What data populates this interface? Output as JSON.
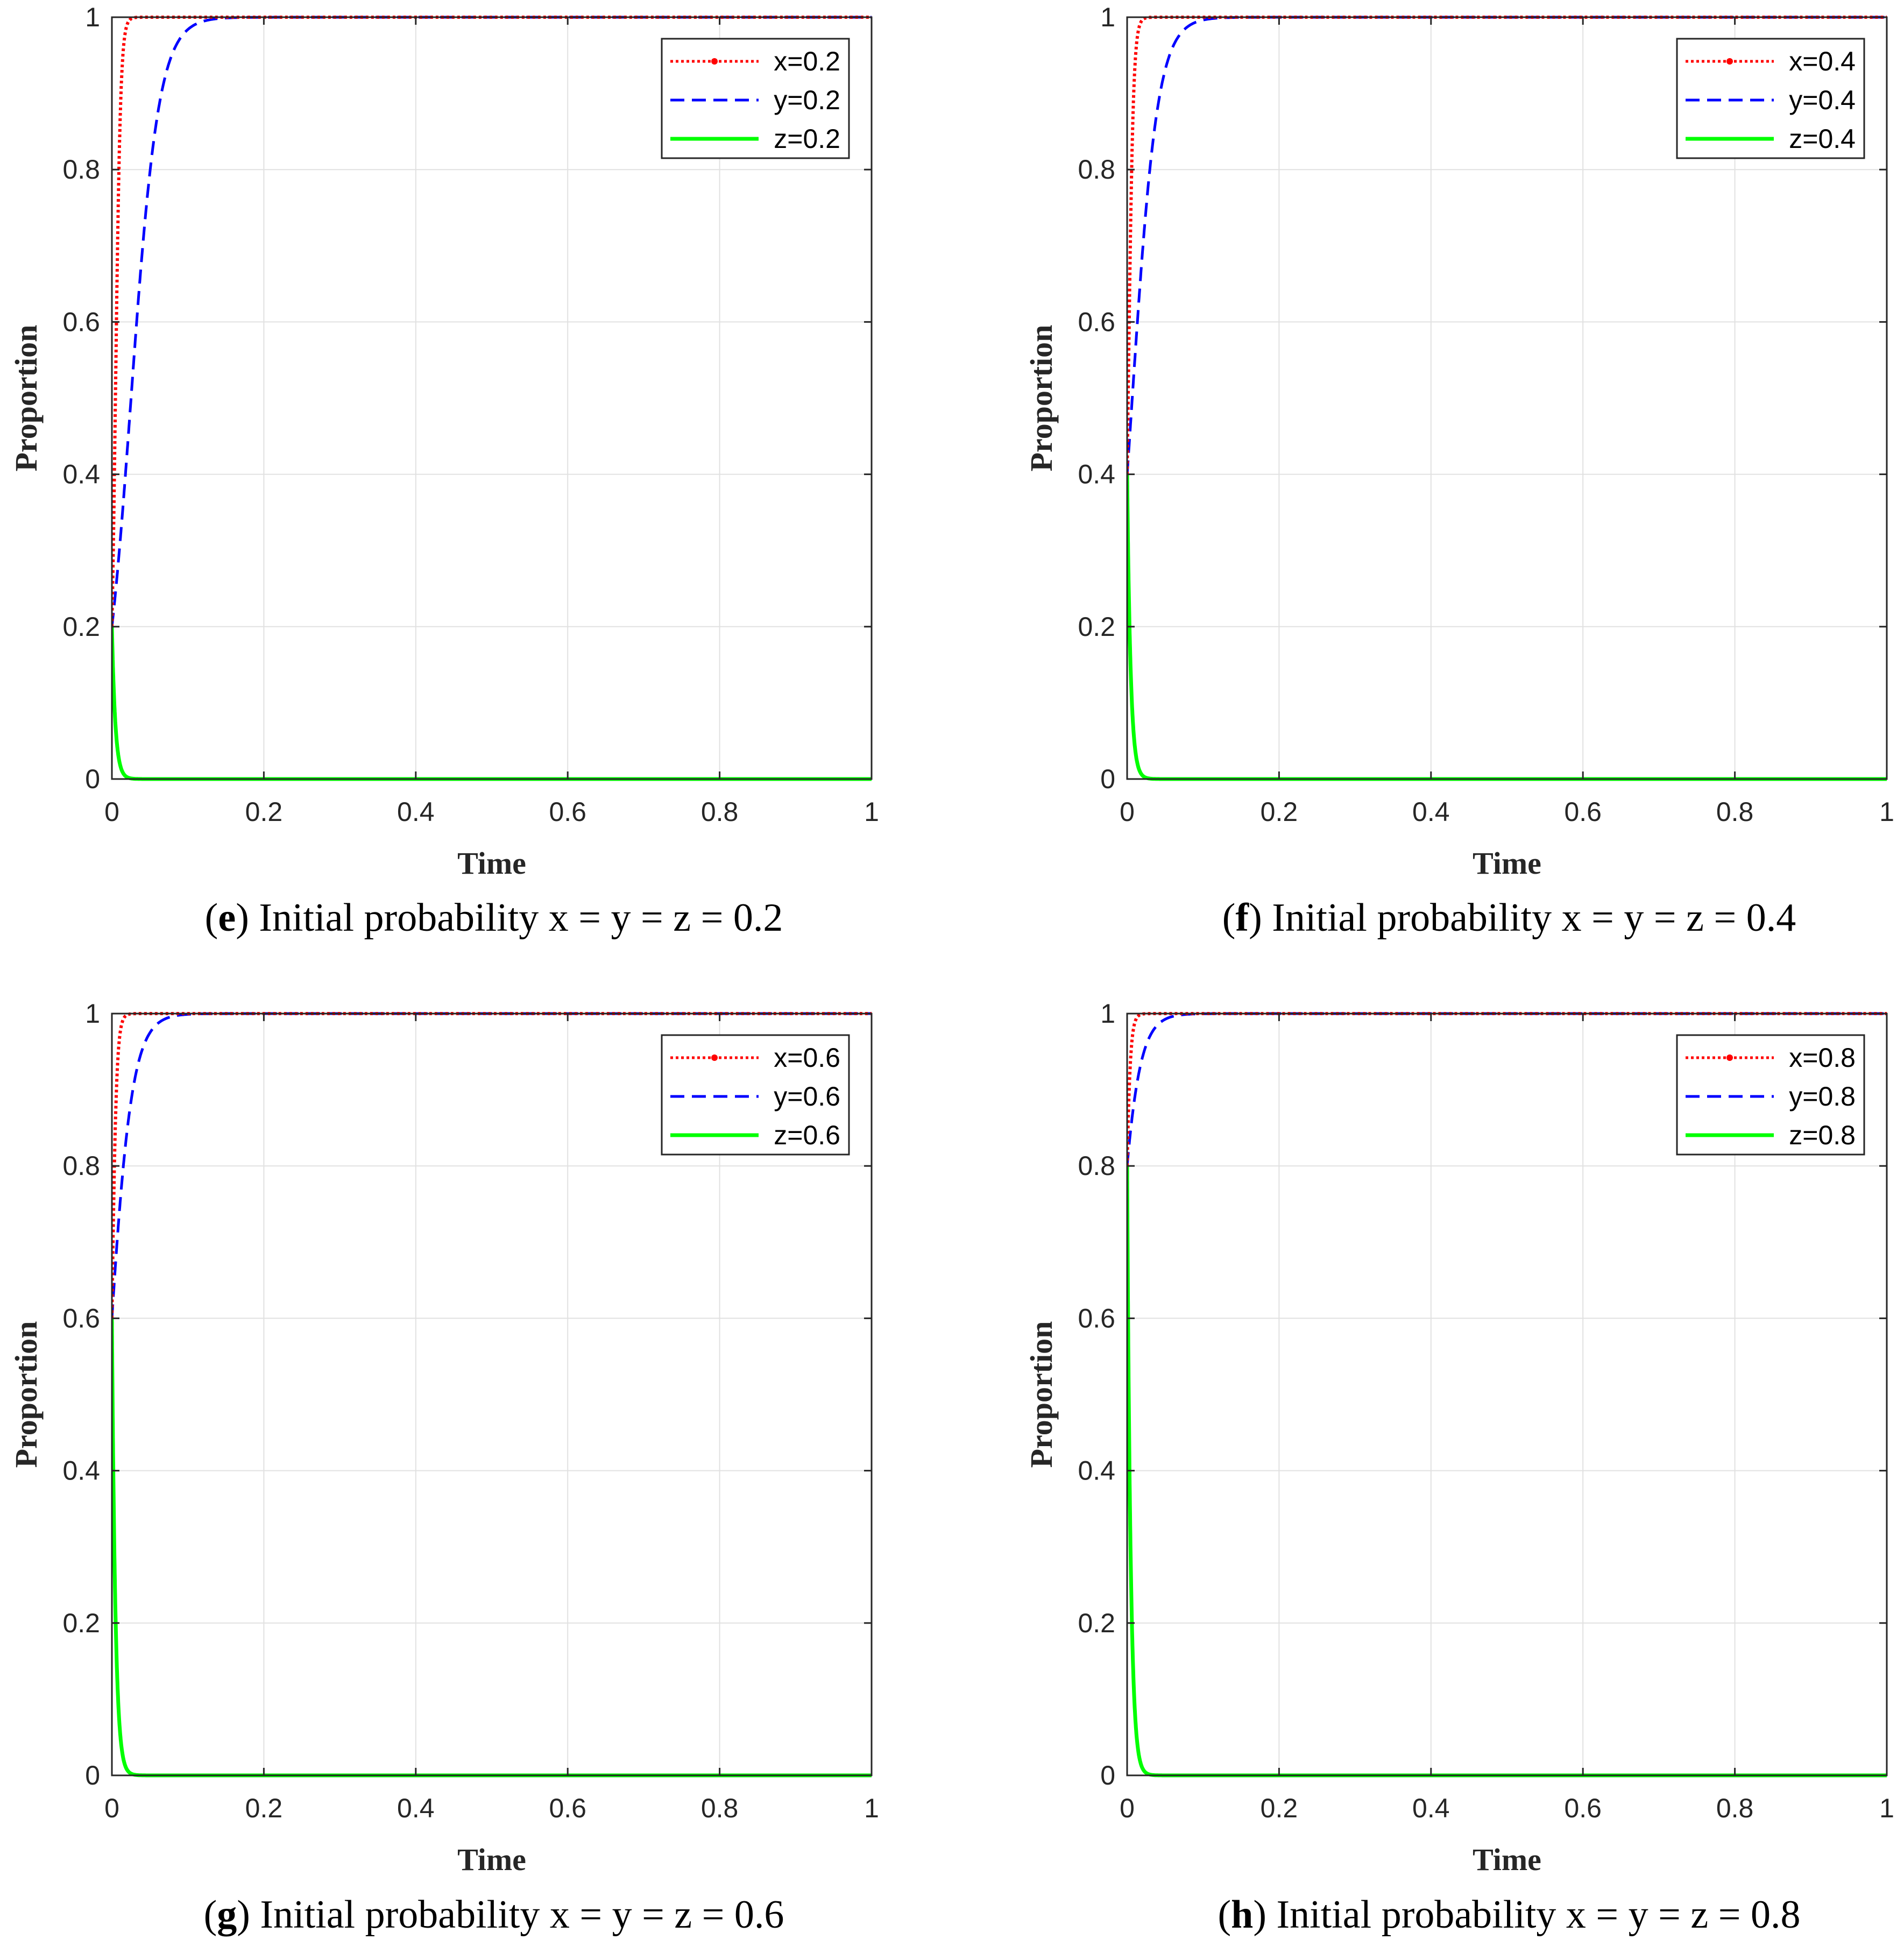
{
  "chart_data": [
    {
      "type": "line",
      "caption": {
        "open": "(",
        "letter": "e",
        "text": ") Initial probability x = y = z = 0.2"
      },
      "xlabel": "Time",
      "ylabel": "Proportion",
      "xlim": [
        0,
        1
      ],
      "ylim": [
        0,
        1
      ],
      "xticks": [
        "0",
        "0.2",
        "0.4",
        "0.6",
        "0.8",
        "1"
      ],
      "yticks": [
        "0",
        "0.2",
        "0.4",
        "0.6",
        "0.8",
        "1"
      ],
      "grid": true,
      "legend_position": "top-right",
      "series": [
        {
          "name": "x=0.2",
          "color": "#ff0000",
          "style": "dotted-marker",
          "x0": 0.2,
          "rate": 300
        },
        {
          "name": "y=0.2",
          "color": "#0000ff",
          "style": "dashed",
          "x0": 0.2,
          "rate": 55
        },
        {
          "name": "z=0.2",
          "color": "#00ff00",
          "style": "solid",
          "x0": 0.2,
          "rate": -220
        }
      ]
    },
    {
      "type": "line",
      "caption": {
        "open": "(",
        "letter": "f",
        "text": ") Initial probability x = y = z = 0.4"
      },
      "xlabel": "Time",
      "ylabel": "Proportion",
      "xlim": [
        0,
        1
      ],
      "ylim": [
        0,
        1
      ],
      "xticks": [
        "0",
        "0.2",
        "0.4",
        "0.6",
        "0.8",
        "1"
      ],
      "yticks": [
        "0",
        "0.2",
        "0.4",
        "0.6",
        "0.8",
        "1"
      ],
      "grid": true,
      "legend_position": "top-right",
      "series": [
        {
          "name": "x=0.4",
          "color": "#ff0000",
          "style": "dotted-marker",
          "x0": 0.4,
          "rate": 300
        },
        {
          "name": "y=0.4",
          "color": "#0000ff",
          "style": "dashed",
          "x0": 0.4,
          "rate": 60
        },
        {
          "name": "z=0.4",
          "color": "#00ff00",
          "style": "solid",
          "x0": 0.4,
          "rate": -220
        }
      ]
    },
    {
      "type": "line",
      "caption": {
        "open": "(",
        "letter": "g",
        "text": ") Initial probability x = y = z = 0.6"
      },
      "xlabel": "Time",
      "ylabel": "Proportion",
      "xlim": [
        0,
        1
      ],
      "ylim": [
        0,
        1
      ],
      "xticks": [
        "0",
        "0.2",
        "0.4",
        "0.6",
        "0.8",
        "1"
      ],
      "yticks": [
        "0",
        "0.2",
        "0.4",
        "0.6",
        "0.8",
        "1"
      ],
      "grid": true,
      "legend_position": "top-right",
      "series": [
        {
          "name": "x=0.6",
          "color": "#ff0000",
          "style": "dotted-marker",
          "x0": 0.6,
          "rate": 300
        },
        {
          "name": "y=0.6",
          "color": "#0000ff",
          "style": "dashed",
          "x0": 0.6,
          "rate": 65
        },
        {
          "name": "z=0.6",
          "color": "#00ff00",
          "style": "solid",
          "x0": 0.6,
          "rate": -220
        }
      ]
    },
    {
      "type": "line",
      "caption": {
        "open": "(",
        "letter": "h",
        "text": ") Initial probability x = y = z = 0.8"
      },
      "xlabel": "Time",
      "ylabel": "Proportion",
      "xlim": [
        0,
        1
      ],
      "ylim": [
        0,
        1
      ],
      "xticks": [
        "0",
        "0.2",
        "0.4",
        "0.6",
        "0.8",
        "1"
      ],
      "yticks": [
        "0",
        "0.2",
        "0.4",
        "0.6",
        "0.8",
        "1"
      ],
      "grid": true,
      "legend_position": "top-right",
      "series": [
        {
          "name": "x=0.8",
          "color": "#ff0000",
          "style": "dotted-marker",
          "x0": 0.8,
          "rate": 300
        },
        {
          "name": "y=0.8",
          "color": "#0000ff",
          "style": "dashed",
          "x0": 0.8,
          "rate": 70
        },
        {
          "name": "z=0.8",
          "color": "#00ff00",
          "style": "solid",
          "x0": 0.8,
          "rate": -220
        }
      ]
    }
  ]
}
